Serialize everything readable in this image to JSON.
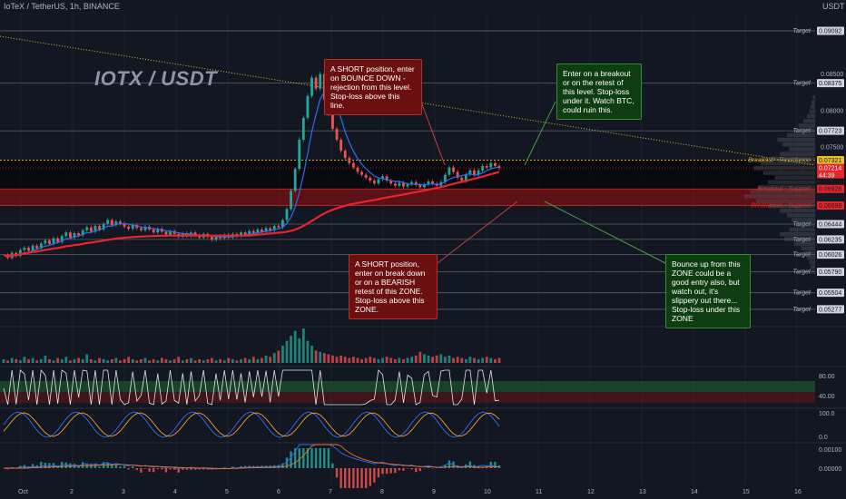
{
  "header": {
    "symbol_line": "IoTeX / TetherUS, 1h, BINANCE",
    "currency": "USDT"
  },
  "watermark": "IOTX / USDT",
  "colors": {
    "background": "#131722",
    "ma_red": "#e8252b",
    "ma_blue": "#2f6df0",
    "note_red": "#6b1010",
    "note_green": "#0f3d12",
    "up": "#26a69a",
    "down": "#ef5350"
  },
  "notes": [
    {
      "id": "short-bounce",
      "color": "red",
      "text": "A SHORT position, enter on BOUNCE DOWN - rejection from this level. Stop-loss above this line."
    },
    {
      "id": "long-breakout",
      "color": "green",
      "text": "Enter on a breakout or on the retest of this level. Stop-loss under it. Watch BTC, could ruin this."
    },
    {
      "id": "short-breakdown",
      "color": "red",
      "text": "A SHORT position, enter on break down or on a BEARISH retest of this ZONE. Stop-loss above this ZONE."
    },
    {
      "id": "long-bounce",
      "color": "green",
      "text": "Bounce up from this ZONE could be a good entry also, but watch out, it's slippery out there... Stop-loss under this ZONE"
    }
  ],
  "chart_data": {
    "type": "line",
    "x_ticks": [
      "Oct",
      "2",
      "3",
      "4",
      "5",
      "6",
      "7",
      "8",
      "9",
      "10",
      "11",
      "12",
      "13",
      "14",
      "15",
      "16"
    ],
    "price_axis": [
      "0.08500",
      "0.08000",
      "0.07500"
    ],
    "current_price": "0.07214",
    "countdown": "44:39",
    "levels": [
      {
        "label": "Target",
        "price": "0.09092"
      },
      {
        "label": "Target",
        "price": "0.08375"
      },
      {
        "label": "Target",
        "price": "0.07723"
      },
      {
        "label": "Breakout - Resistance",
        "price": "0.07321"
      },
      {
        "label": "Breakout - Support",
        "price": "0.06926"
      },
      {
        "label": "Breakdown - Support",
        "price": "0.06699"
      },
      {
        "label": "Target",
        "price": "0.06444"
      },
      {
        "label": "Target",
        "price": "0.06235"
      },
      {
        "label": "Target",
        "price": "0.06026"
      },
      {
        "label": "Target",
        "price": "0.05790"
      },
      {
        "label": "Target",
        "price": "0.05504"
      },
      {
        "label": "Target",
        "price": "0.05277"
      }
    ],
    "price_series": [
      0.0602,
      0.0598,
      0.0605,
      0.0601,
      0.0609,
      0.0612,
      0.0608,
      0.0615,
      0.0611,
      0.0618,
      0.0622,
      0.0617,
      0.0625,
      0.062,
      0.0628,
      0.0633,
      0.0626,
      0.0632,
      0.0629,
      0.0636,
      0.064,
      0.0634,
      0.0642,
      0.0637,
      0.0645,
      0.065,
      0.0643,
      0.0648,
      0.0645,
      0.0641,
      0.0638,
      0.0643,
      0.0639,
      0.0636,
      0.0641,
      0.0637,
      0.0633,
      0.0638,
      0.0634,
      0.063,
      0.0635,
      0.0631,
      0.0627,
      0.0632,
      0.0628,
      0.0633,
      0.0629,
      0.0626,
      0.0631,
      0.0627,
      0.0623,
      0.0628,
      0.0625,
      0.063,
      0.0626,
      0.0631,
      0.0628,
      0.0633,
      0.063,
      0.0635,
      0.0632,
      0.0637,
      0.0634,
      0.0639,
      0.0636,
      0.0642,
      0.064,
      0.065,
      0.0665,
      0.069,
      0.072,
      0.076,
      0.079,
      0.082,
      0.0845,
      0.083,
      0.085,
      0.0815,
      0.0795,
      0.0775,
      0.076,
      0.0745,
      0.0735,
      0.0728,
      0.0722,
      0.0716,
      0.0712,
      0.0708,
      0.0704,
      0.07,
      0.0706,
      0.071,
      0.0704,
      0.07,
      0.0697,
      0.0701,
      0.0696,
      0.0699,
      0.0702,
      0.0698,
      0.0695,
      0.0699,
      0.0703,
      0.07,
      0.0697,
      0.0702,
      0.0712,
      0.0722,
      0.0716,
      0.0708,
      0.0704,
      0.0712,
      0.0718,
      0.0712,
      0.0718,
      0.0724,
      0.0722,
      0.0728,
      0.0724,
      0.0721
    ],
    "volume_series": [
      3,
      2,
      4,
      3,
      2,
      5,
      3,
      4,
      2,
      3,
      6,
      3,
      2,
      4,
      3,
      5,
      2,
      3,
      4,
      3,
      7,
      3,
      2,
      4,
      3,
      2,
      3,
      4,
      2,
      3,
      5,
      3,
      2,
      3,
      4,
      2,
      3,
      2,
      4,
      3,
      2,
      3,
      5,
      2,
      3,
      4,
      2,
      3,
      2,
      3,
      4,
      2,
      3,
      2,
      4,
      3,
      2,
      3,
      4,
      3,
      5,
      3,
      4,
      6,
      5,
      8,
      10,
      14,
      18,
      22,
      26,
      20,
      28,
      18,
      14,
      10,
      9,
      8,
      7,
      6,
      5,
      6,
      5,
      4,
      5,
      4,
      3,
      4,
      5,
      4,
      3,
      4,
      5,
      4,
      3,
      4,
      3,
      4,
      5,
      6,
      9,
      7,
      6,
      5,
      6,
      7,
      5,
      6,
      4,
      5,
      4,
      3,
      5,
      4,
      3,
      4,
      5,
      4,
      3,
      4
    ],
    "rsi_axis": [
      "80.00",
      "40.00"
    ],
    "stoch_axis": [
      "100.0",
      "0.0"
    ],
    "macd_axis": [
      "0.00100",
      "0.00000"
    ]
  }
}
